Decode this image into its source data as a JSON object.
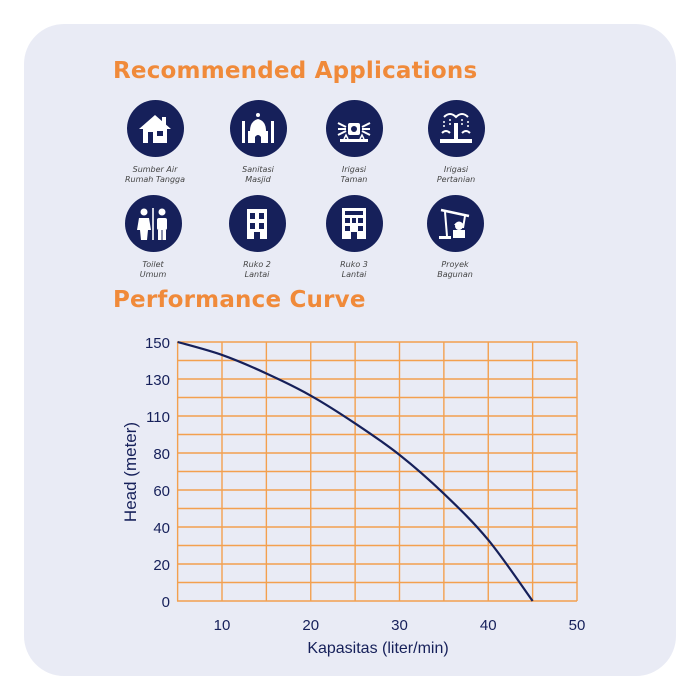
{
  "sections": {
    "applications_title": "Recommended Applications",
    "performance_title": "Performance Curve"
  },
  "applications": [
    {
      "icon": "house-icon",
      "line1": "Sumber Air",
      "line2": "Rumah Tangga"
    },
    {
      "icon": "mosque-icon",
      "line1": "Sanitasi",
      "line2": "Masjid"
    },
    {
      "icon": "garden-irrigation-icon",
      "line1": "Irigasi",
      "line2": "Taman"
    },
    {
      "icon": "farm-irrigation-icon",
      "line1": "Irigasi",
      "line2": "Pertanian"
    },
    {
      "icon": "restroom-icon",
      "line1": "Toilet",
      "line2": "Umum"
    },
    {
      "icon": "two-storey-building-icon",
      "line1": "Ruko 2",
      "line2": "Lantai"
    },
    {
      "icon": "three-storey-building-icon",
      "line1": "Ruko 3",
      "line2": "Lantai"
    },
    {
      "icon": "construction-project-icon",
      "line1": "Proyek",
      "line2": "Bagunan"
    }
  ],
  "colors": {
    "accent": "#f08a3a",
    "icon_bg": "#16205a",
    "grid": "#f3a04f",
    "curve": "#16205a",
    "card_bg": "#e9ebf5"
  },
  "chart_data": {
    "type": "line",
    "title": "Performance Curve",
    "xlabel": "Kapasitas (liter/min)",
    "ylabel": "Head (meter)",
    "xlim": [
      5,
      50
    ],
    "ylim": [
      0,
      140
    ],
    "x_ticks": [
      10,
      20,
      30,
      40,
      50
    ],
    "y_ticks": [
      0,
      20,
      40,
      60,
      80,
      110,
      130,
      150
    ],
    "grid": true,
    "series": [
      {
        "values": [
          {
            "x": 5,
            "y": 140
          },
          {
            "x": 10,
            "y": 133
          },
          {
            "x": 15,
            "y": 123
          },
          {
            "x": 20,
            "y": 111
          },
          {
            "x": 25,
            "y": 96
          },
          {
            "x": 30,
            "y": 79
          },
          {
            "x": 35,
            "y": 58
          },
          {
            "x": 40,
            "y": 33
          },
          {
            "x": 45,
            "y": 0
          }
        ]
      }
    ]
  }
}
